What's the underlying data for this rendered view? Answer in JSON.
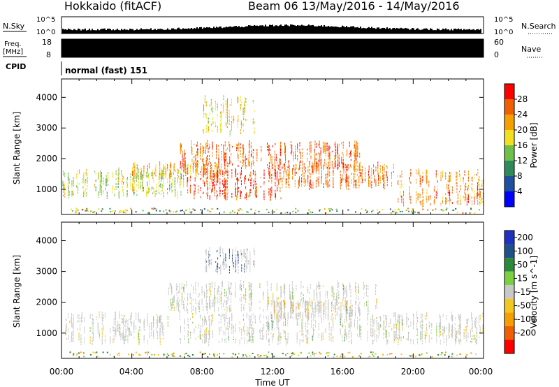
{
  "header": {
    "station": "Hokkaido (fitACF)",
    "beam_date": "Beam 06 13/May/2016 - 14/May/2016"
  },
  "strips": {
    "nsky": {
      "label": "N.Sky",
      "ticks": [
        "10^5",
        "10^0"
      ],
      "right_ticks": [
        "10^5",
        "10^0"
      ],
      "right_label": "N.Search"
    },
    "freq": {
      "label_line1": "Freq.",
      "label_line2": "[MHz]",
      "ticks": [
        "18",
        "8"
      ],
      "right_ticks": [
        "60",
        "0"
      ],
      "right_label": "Nave"
    },
    "cpid": {
      "label": "CPID",
      "value": "normal (fast) 151"
    }
  },
  "colors": {
    "power_scale": [
      "#0000ff",
      "#1e4fa0",
      "#2e8a5a",
      "#6fc04a",
      "#f2e020",
      "#f5a000",
      "#f06000",
      "#ff0000"
    ],
    "velocity_scale": [
      "#2030c0",
      "#20508a",
      "#2a8a3a",
      "#7ad040",
      "#c8c8c8",
      "#f2c820",
      "#f5a000",
      "#f06000",
      "#ff0000"
    ],
    "ground_scatter": "#c8c8c8"
  },
  "chart_data": [
    {
      "type": "heatmap",
      "title": "",
      "ylabel": "Slant Range [km]",
      "xlabel": "",
      "x_ticks": [
        "00:00",
        "04:00",
        "08:00",
        "12:00",
        "16:00",
        "20:00",
        "00:00"
      ],
      "xlim_hours": [
        0,
        24
      ],
      "y_ticks": [
        "1000",
        "2000",
        "3000",
        "4000"
      ],
      "ylim_km": [
        180,
        4600
      ],
      "colorbar": {
        "label": "Power [dB]",
        "ticks": [
          "4",
          "8",
          "12",
          "16",
          "20",
          "24",
          "28"
        ],
        "range": [
          0,
          32
        ]
      },
      "bands": [
        {
          "t_start": 0,
          "t_end": 7,
          "r_low": 800,
          "r_high": 1600,
          "intensity": 16
        },
        {
          "t_start": 4,
          "t_end": 9,
          "r_low": 1400,
          "r_high": 1800,
          "intensity": 22
        },
        {
          "t_start": 6.5,
          "t_end": 17,
          "r_low": 1700,
          "r_high": 2500,
          "intensity": 26
        },
        {
          "t_start": 7,
          "t_end": 12.5,
          "r_low": 700,
          "r_high": 1600,
          "intensity": 28
        },
        {
          "t_start": 12,
          "t_end": 19,
          "r_low": 1100,
          "r_high": 1800,
          "intensity": 25
        },
        {
          "t_start": 19,
          "t_end": 24,
          "r_low": 500,
          "r_high": 1600,
          "intensity": 24
        },
        {
          "t_start": 8,
          "t_end": 11,
          "r_low": 2800,
          "r_high": 4000,
          "intensity": 18
        }
      ]
    },
    {
      "type": "heatmap",
      "title": "",
      "ylabel": "Slant Range [km]",
      "xlabel": "Time UT",
      "x_ticks": [
        "00:00",
        "04:00",
        "08:00",
        "12:00",
        "16:00",
        "20:00",
        "00:00"
      ],
      "xlim_hours": [
        0,
        24
      ],
      "y_ticks": [
        "1000",
        "2000",
        "3000",
        "4000"
      ],
      "ylim_km": [
        180,
        4600
      ],
      "colorbar": {
        "label": "Velocity [m s^-1]",
        "ticks": [
          "200",
          "100",
          "50",
          "15",
          "-15",
          "-50",
          "-100",
          "-200"
        ],
        "range": [
          -250,
          250
        ]
      },
      "bands": [
        {
          "t_start": 0,
          "t_end": 24,
          "r_low": 700,
          "r_high": 1600,
          "velocity": 0
        },
        {
          "t_start": 6,
          "t_end": 18,
          "r_low": 1700,
          "r_high": 2600,
          "velocity": 0
        },
        {
          "t_start": 12,
          "t_end": 17,
          "r_low": 1500,
          "r_high": 2000,
          "velocity": -40
        },
        {
          "t_start": 8,
          "t_end": 11,
          "r_low": 3000,
          "r_high": 3700,
          "velocity": 150
        }
      ]
    }
  ]
}
